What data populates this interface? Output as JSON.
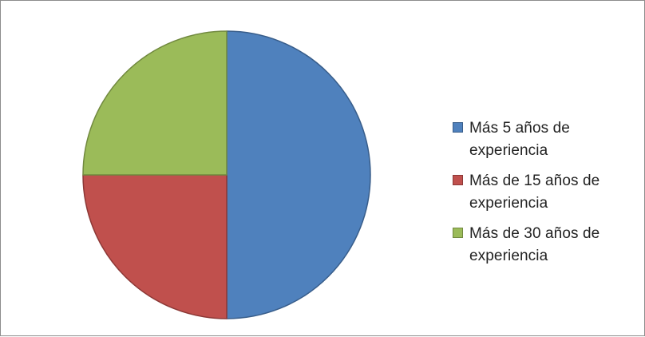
{
  "chart_data": {
    "type": "pie",
    "title": "",
    "slices": [
      {
        "label": "Más 5 años de experiencia",
        "value": 50,
        "color": "#4F81BD",
        "stroke": "#385D8A"
      },
      {
        "label": "Más de 15 años de experiencia",
        "value": 25,
        "color": "#C0504D",
        "stroke": "#8C3836"
      },
      {
        "label": "Más de 30 años de experiencia",
        "value": 25,
        "color": "#9BBB59",
        "stroke": "#71893F"
      }
    ],
    "legend_position": "right"
  }
}
